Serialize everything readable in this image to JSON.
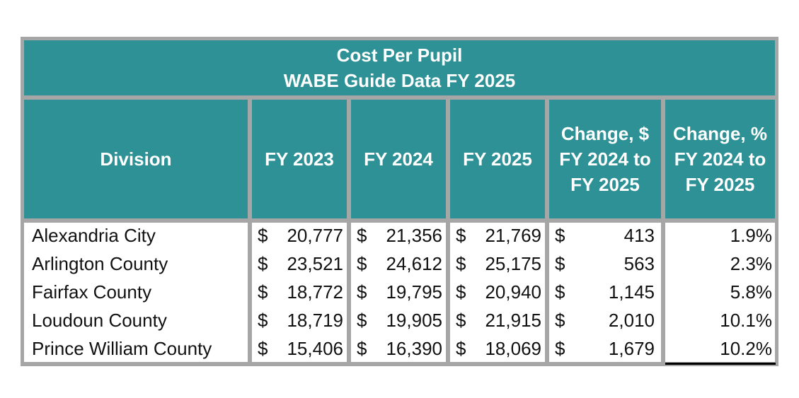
{
  "table": {
    "title_line1": "Cost Per Pupil",
    "title_line2": "WABE Guide Data FY 2025",
    "headers": {
      "division": "Division",
      "fy2023": "FY 2023",
      "fy2024": "FY 2024",
      "fy2025": "FY 2025",
      "change_dollar": "Change, $\nFY 2024 to\nFY 2025",
      "change_pct": "Change, %\nFY 2024 to\nFY 2025"
    },
    "currency_symbol": "$",
    "rows": [
      {
        "division": "Alexandria City",
        "fy2023": "20,777",
        "fy2024": "21,356",
        "fy2025": "21,769",
        "change_dollar": "413",
        "change_pct": "1.9%"
      },
      {
        "division": "Arlington County",
        "fy2023": "23,521",
        "fy2024": "24,612",
        "fy2025": "25,175",
        "change_dollar": "563",
        "change_pct": "2.3%"
      },
      {
        "division": "Fairfax County",
        "fy2023": "18,772",
        "fy2024": "19,795",
        "fy2025": "20,940",
        "change_dollar": "1,145",
        "change_pct": "5.8%"
      },
      {
        "division": "Loudoun County",
        "fy2023": "18,719",
        "fy2024": "19,905",
        "fy2025": "21,915",
        "change_dollar": "2,010",
        "change_pct": "10.1%"
      },
      {
        "division": "Prince William County",
        "fy2023": "15,406",
        "fy2024": "16,390",
        "fy2025": "18,069",
        "change_dollar": "1,679",
        "change_pct": "10.2%"
      }
    ]
  },
  "colors": {
    "header_bg": "#2e9195",
    "grid": "#a6a6a6"
  }
}
